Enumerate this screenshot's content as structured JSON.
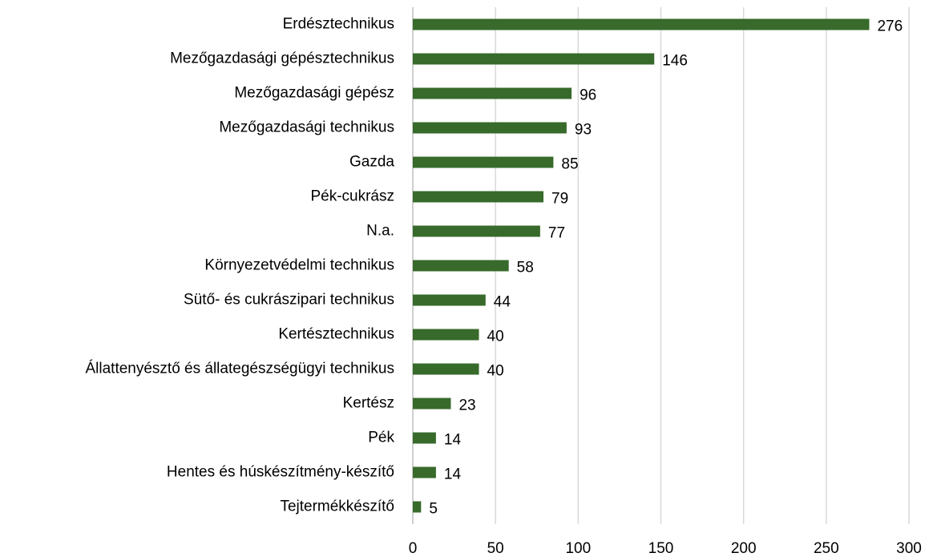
{
  "chart_data": {
    "type": "bar",
    "orientation": "horizontal",
    "categories": [
      "Erdésztechnikus",
      "Mezőgazdasági gépésztechnikus",
      "Mezőgazdasági gépész",
      "Mezőgazdasági technikus",
      "Gazda",
      "Pék-cukrász",
      "N.a.",
      "Környezetvédelmi technikus",
      "Sütő- és cukrászipari technikus",
      "Kertésztechnikus",
      "Állattenyésztő és állategészségügyi technikus",
      "Kertész",
      "Pék",
      "Hentes és húskészítmény-készítő",
      "Tejtermékkészítő"
    ],
    "values": [
      276,
      146,
      96,
      93,
      85,
      79,
      77,
      58,
      44,
      40,
      40,
      23,
      14,
      14,
      5
    ],
    "color": "#376a2b",
    "xlim": [
      0,
      300
    ],
    "xticks": [
      0,
      50,
      100,
      150,
      200,
      250,
      300
    ],
    "grid": true
  }
}
